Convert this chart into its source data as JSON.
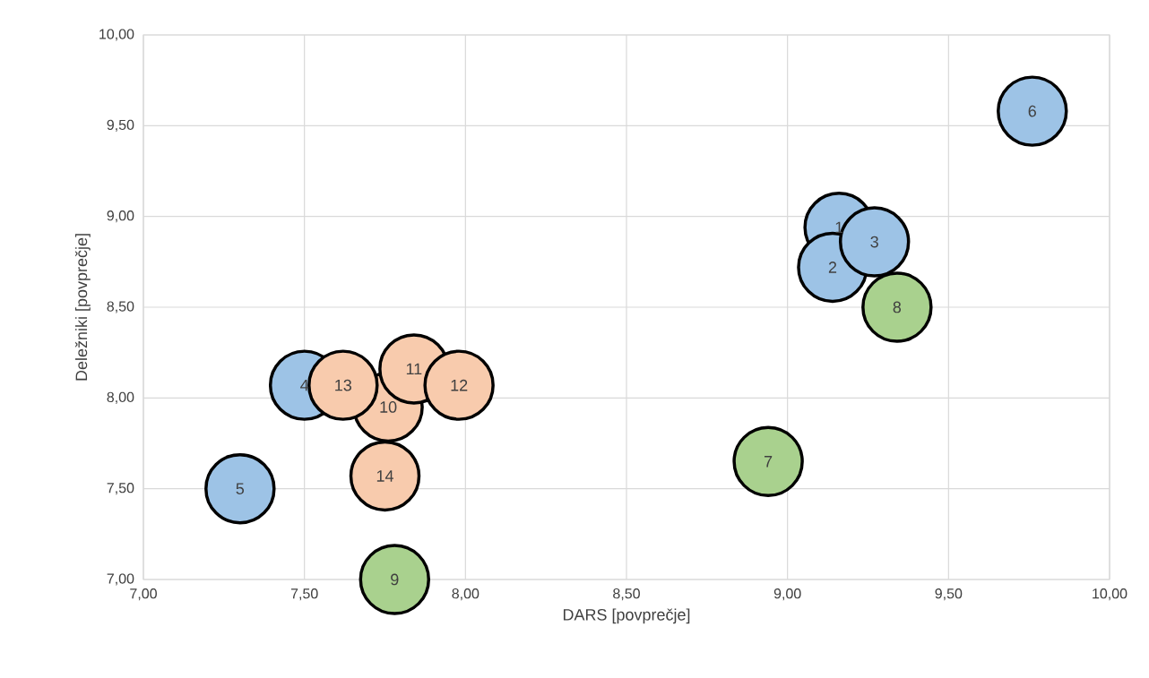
{
  "chart_data": {
    "type": "bubble",
    "xlabel": "DARS [povprečje]",
    "ylabel": "Deležniki [povprečje]",
    "xlim": [
      7,
      10
    ],
    "ylim": [
      7,
      10
    ],
    "grid": true,
    "xticks": [
      {
        "value": 7,
        "label": "7,00"
      },
      {
        "value": 7.5,
        "label": "7,50"
      },
      {
        "value": 8,
        "label": "8,00"
      },
      {
        "value": 8.5,
        "label": "8,50"
      },
      {
        "value": 9,
        "label": "9,00"
      },
      {
        "value": 9.5,
        "label": "9,50"
      },
      {
        "value": 10,
        "label": "10,00"
      }
    ],
    "yticks": [
      {
        "value": 7,
        "label": "7,00"
      },
      {
        "value": 7.5,
        "label": "7,50"
      },
      {
        "value": 8,
        "label": "8,00"
      },
      {
        "value": 8.5,
        "label": "8,50"
      },
      {
        "value": 9,
        "label": "9,00"
      },
      {
        "value": 9.5,
        "label": "9,50"
      },
      {
        "value": 10,
        "label": "10,00"
      }
    ],
    "series": [
      {
        "color": "#9dc3e6",
        "x": [
          9.16,
          9.14,
          9.27,
          7.5,
          7.3,
          9.76
        ],
        "values": [
          8.94,
          8.72,
          8.86,
          8.07,
          7.5,
          9.58
        ],
        "sizes": [
          1,
          1,
          1,
          1,
          1,
          1
        ]
      },
      {
        "color": "#a9d18e",
        "x": [
          8.94,
          9.34,
          7.78
        ],
        "values": [
          7.65,
          8.5,
          7.0
        ],
        "sizes": [
          1,
          1,
          1
        ]
      },
      {
        "color": "#f8cbad",
        "x": [
          7.76,
          7.84,
          7.98,
          7.62,
          7.75
        ],
        "values": [
          7.95,
          8.16,
          8.07,
          8.07,
          7.57
        ],
        "sizes": [
          1,
          1,
          1,
          1,
          1
        ]
      }
    ],
    "annotations": [
      {
        "text": "1",
        "x": 9.16,
        "y": 8.94
      },
      {
        "text": "2",
        "x": 9.14,
        "y": 8.72
      },
      {
        "text": "3",
        "x": 9.27,
        "y": 8.86
      },
      {
        "text": "4",
        "x": 7.5,
        "y": 8.07
      },
      {
        "text": "5",
        "x": 7.3,
        "y": 7.5
      },
      {
        "text": "6",
        "x": 9.76,
        "y": 9.58
      },
      {
        "text": "7",
        "x": 8.94,
        "y": 7.65
      },
      {
        "text": "8",
        "x": 9.34,
        "y": 8.5
      },
      {
        "text": "9",
        "x": 7.78,
        "y": 7.0
      },
      {
        "text": "10",
        "x": 7.76,
        "y": 7.95
      },
      {
        "text": "11",
        "x": 7.84,
        "y": 8.16
      },
      {
        "text": "12",
        "x": 7.98,
        "y": 8.07
      },
      {
        "text": "13",
        "x": 7.62,
        "y": 8.07
      },
      {
        "text": "14",
        "x": 7.75,
        "y": 7.57
      }
    ]
  }
}
